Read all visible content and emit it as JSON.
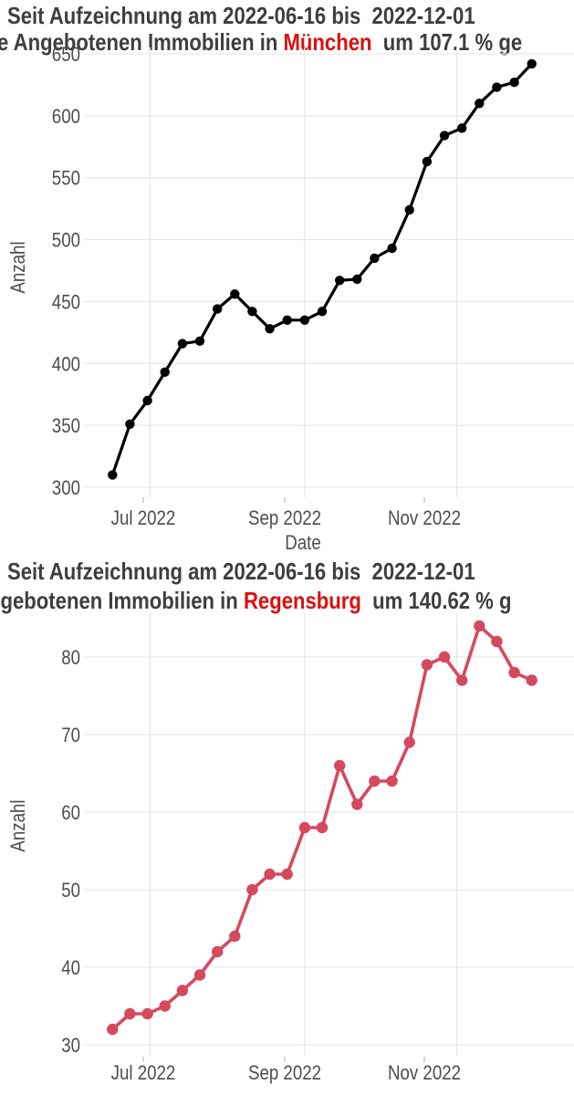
{
  "page": {
    "background": "#ffffff",
    "title_color": "#3e3e3e",
    "tick_color": "#4d4d4d",
    "grid_color": "#e9e9e9"
  },
  "chart_data": [
    {
      "type": "line",
      "title": "Seit Aufzeichnung am 2022-06-16 bis  2022-12-01",
      "subtitle_prefix": "e Angebotenen Immobilien in ",
      "subtitle_highlight": "München",
      "subtitle_suffix": "  um 107.1 % ge",
      "highlight_color": "#dc0f0f",
      "city": "München",
      "percent_change": "107.1 %",
      "start_date": "2022-06-16",
      "end_date": "2022-12-01",
      "interval": "weekly",
      "line_color": "#000000",
      "point_color": "#000000",
      "ylabel": "Anzahl",
      "xlabel": "Date",
      "x_tick_labels": [
        "Jul 2022",
        "Sep 2022",
        "Nov 2022"
      ],
      "y_ticks": [
        300,
        350,
        400,
        450,
        500,
        550,
        600,
        650
      ],
      "ylim": [
        292,
        656
      ],
      "grid": true,
      "legend": "none",
      "dates": [
        "2022-06-16",
        "2022-06-23",
        "2022-06-30",
        "2022-07-07",
        "2022-07-14",
        "2022-07-21",
        "2022-07-28",
        "2022-08-04",
        "2022-08-11",
        "2022-08-18",
        "2022-08-25",
        "2022-09-01",
        "2022-09-08",
        "2022-09-15",
        "2022-09-22",
        "2022-09-29",
        "2022-10-06",
        "2022-10-13",
        "2022-10-20",
        "2022-10-27",
        "2022-11-03",
        "2022-11-10",
        "2022-11-17",
        "2022-11-24",
        "2022-12-01"
      ],
      "values": [
        310,
        351,
        370,
        393,
        416,
        418,
        444,
        456,
        442,
        428,
        435,
        435,
        442,
        467,
        468,
        485,
        493,
        524,
        563,
        584,
        590,
        610,
        623,
        627,
        642
      ]
    },
    {
      "type": "line",
      "title": "Seit Aufzeichnung am 2022-06-16 bis  2022-12-01",
      "subtitle_prefix": "ngebotenen Immobilien in ",
      "subtitle_highlight": "Regensburg",
      "subtitle_suffix": "  um 140.62 % g",
      "highlight_color": "#dc0f0f",
      "city": "Regensburg",
      "percent_change": "140.62 %",
      "start_date": "2022-06-16",
      "end_date": "2022-12-01",
      "interval": "weekly",
      "line_color": "#d5495e",
      "point_color": "#d5495e",
      "ylabel": "Anzahl",
      "x_tick_labels": [
        "Jul 2022",
        "Sep 2022",
        "Nov 2022"
      ],
      "y_ticks": [
        30,
        40,
        50,
        60,
        70,
        80
      ],
      "ylim": [
        29,
        86
      ],
      "grid": true,
      "legend": "none",
      "dates": [
        "2022-06-16",
        "2022-06-23",
        "2022-06-30",
        "2022-07-07",
        "2022-07-14",
        "2022-07-21",
        "2022-07-28",
        "2022-08-04",
        "2022-08-11",
        "2022-08-18",
        "2022-08-25",
        "2022-09-01",
        "2022-09-08",
        "2022-09-15",
        "2022-09-22",
        "2022-09-29",
        "2022-10-06",
        "2022-10-13",
        "2022-10-20",
        "2022-10-27",
        "2022-11-03",
        "2022-11-10",
        "2022-11-17",
        "2022-11-24",
        "2022-12-01"
      ],
      "values": [
        32,
        34,
        34,
        35,
        37,
        39,
        42,
        44,
        50,
        52,
        52,
        58,
        58,
        66,
        61,
        64,
        64,
        69,
        79,
        80,
        77,
        84,
        82,
        78,
        77
      ]
    }
  ]
}
